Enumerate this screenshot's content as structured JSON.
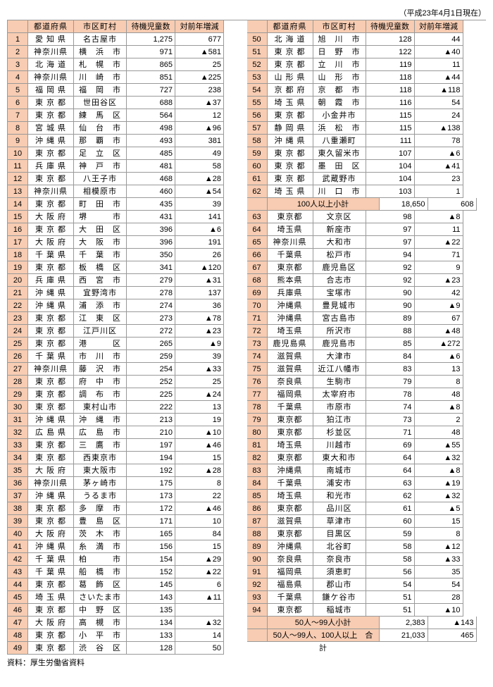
{
  "date_note": "（平成23年4月1日現在）",
  "source": "資料：厚生労働省資料",
  "headers": {
    "idx": "",
    "pref": "都道府県",
    "city": "市区町村",
    "n1": "待機児童数",
    "n2": "対前年増減"
  },
  "subtotals": {
    "s100": {
      "label": "100人以上小計",
      "n1": "18,650",
      "n2": "608"
    },
    "s50": {
      "label": "50人～99人小計",
      "n1": "2,383",
      "n2": "▲143"
    },
    "total": {
      "label": "50人～99人、100人以上　合計",
      "n1": "21,033",
      "n2": "465"
    }
  },
  "left": [
    {
      "i": "1",
      "p": "愛 知 県",
      "c": "名古屋市",
      "n1": "1,275",
      "n2": "677"
    },
    {
      "i": "2",
      "p": "神奈川県",
      "c": "横　浜　市",
      "n1": "971",
      "n2": "▲581"
    },
    {
      "i": "3",
      "p": "北 海 道",
      "c": "札　幌　市",
      "n1": "865",
      "n2": "25"
    },
    {
      "i": "4",
      "p": "神奈川県",
      "c": "川　崎　市",
      "n1": "851",
      "n2": "▲225"
    },
    {
      "i": "5",
      "p": "福 岡 県",
      "c": "福　岡　市",
      "n1": "727",
      "n2": "238"
    },
    {
      "i": "6",
      "p": "東 京 都",
      "c": "世田谷区",
      "n1": "688",
      "n2": "▲37"
    },
    {
      "i": "7",
      "p": "東 京 都",
      "c": "練　馬　区",
      "n1": "564",
      "n2": "12"
    },
    {
      "i": "8",
      "p": "宮 城 県",
      "c": "仙　台　市",
      "n1": "498",
      "n2": "▲96"
    },
    {
      "i": "9",
      "p": "沖 縄 県",
      "c": "那　覇　市",
      "n1": "493",
      "n2": "381"
    },
    {
      "i": "10",
      "p": "東 京 都",
      "c": "足　立　区",
      "n1": "485",
      "n2": "49"
    },
    {
      "i": "11",
      "p": "兵 庫 県",
      "c": "神　戸　市",
      "n1": "481",
      "n2": "58"
    },
    {
      "i": "12",
      "p": "東 京 都",
      "c": "八王子市",
      "n1": "468",
      "n2": "▲28"
    },
    {
      "i": "13",
      "p": "神奈川県",
      "c": "相模原市",
      "n1": "460",
      "n2": "▲54"
    },
    {
      "i": "14",
      "p": "東 京 都",
      "c": "町　田　市",
      "n1": "435",
      "n2": "39"
    },
    {
      "i": "15",
      "p": "大 阪 府",
      "c": "堺　　　市",
      "n1": "431",
      "n2": "141"
    },
    {
      "i": "16",
      "p": "東 京 都",
      "c": "大　田　区",
      "n1": "396",
      "n2": "▲6"
    },
    {
      "i": "17",
      "p": "大 阪 府",
      "c": "大　阪　市",
      "n1": "396",
      "n2": "191"
    },
    {
      "i": "18",
      "p": "千 葉 県",
      "c": "千　葉　市",
      "n1": "350",
      "n2": "26"
    },
    {
      "i": "19",
      "p": "東 京 都",
      "c": "板　橋　区",
      "n1": "341",
      "n2": "▲120"
    },
    {
      "i": "20",
      "p": "兵 庫 県",
      "c": "西　宮　市",
      "n1": "279",
      "n2": "▲31"
    },
    {
      "i": "21",
      "p": "沖 縄 県",
      "c": "宜野湾市",
      "n1": "278",
      "n2": "137"
    },
    {
      "i": "22",
      "p": "沖 縄 県",
      "c": "浦　添　市",
      "n1": "274",
      "n2": "36"
    },
    {
      "i": "23",
      "p": "東 京 都",
      "c": "江　東　区",
      "n1": "273",
      "n2": "▲78"
    },
    {
      "i": "24",
      "p": "東 京 都",
      "c": "江戸川区",
      "n1": "272",
      "n2": "▲23"
    },
    {
      "i": "25",
      "p": "東 京 都",
      "c": "港　　　区",
      "n1": "265",
      "n2": "▲9"
    },
    {
      "i": "26",
      "p": "千 葉 県",
      "c": "市　川　市",
      "n1": "259",
      "n2": "39"
    },
    {
      "i": "27",
      "p": "神奈川県",
      "c": "藤　沢　市",
      "n1": "254",
      "n2": "▲33"
    },
    {
      "i": "28",
      "p": "東 京 都",
      "c": "府　中　市",
      "n1": "252",
      "n2": "25"
    },
    {
      "i": "29",
      "p": "東 京 都",
      "c": "調　布　市",
      "n1": "225",
      "n2": "▲24"
    },
    {
      "i": "30",
      "p": "東 京 都",
      "c": "東村山市",
      "n1": "222",
      "n2": "13"
    },
    {
      "i": "31",
      "p": "沖 縄 県",
      "c": "沖　縄　市",
      "n1": "213",
      "n2": "19"
    },
    {
      "i": "32",
      "p": "広 島 県",
      "c": "広　島　市",
      "n1": "210",
      "n2": "▲10"
    },
    {
      "i": "33",
      "p": "東 京 都",
      "c": "三　鷹　市",
      "n1": "197",
      "n2": "▲46"
    },
    {
      "i": "34",
      "p": "東 京 都",
      "c": "西東京市",
      "n1": "194",
      "n2": "15"
    },
    {
      "i": "35",
      "p": "大 阪 府",
      "c": "東大阪市",
      "n1": "192",
      "n2": "▲28"
    },
    {
      "i": "36",
      "p": "神奈川県",
      "c": "茅ヶ崎市",
      "n1": "175",
      "n2": "8"
    },
    {
      "i": "37",
      "p": "沖 縄 県",
      "c": "うるま市",
      "n1": "173",
      "n2": "22"
    },
    {
      "i": "38",
      "p": "東 京 都",
      "c": "多　摩　市",
      "n1": "172",
      "n2": "▲46"
    },
    {
      "i": "39",
      "p": "東 京 都",
      "c": "豊　島　区",
      "n1": "171",
      "n2": "10"
    },
    {
      "i": "40",
      "p": "大 阪 府",
      "c": "茨　木　市",
      "n1": "165",
      "n2": "84"
    },
    {
      "i": "41",
      "p": "沖 縄 県",
      "c": "糸　満　市",
      "n1": "156",
      "n2": "15"
    },
    {
      "i": "42",
      "p": "千 葉 県",
      "c": "柏　　　市",
      "n1": "154",
      "n2": "▲29"
    },
    {
      "i": "43",
      "p": "千 葉 県",
      "c": "船　橋　市",
      "n1": "152",
      "n2": "▲22"
    },
    {
      "i": "44",
      "p": "東 京 都",
      "c": "葛　飾　区",
      "n1": "145",
      "n2": "6"
    },
    {
      "i": "45",
      "p": "埼 玉 県",
      "c": "さいたま市",
      "n1": "143",
      "n2": "▲11"
    },
    {
      "i": "46",
      "p": "東 京 都",
      "c": "中　野　区",
      "n1": "135",
      "n2": ""
    },
    {
      "i": "47",
      "p": "大 阪 府",
      "c": "高　槻　市",
      "n1": "134",
      "n2": "▲32"
    },
    {
      "i": "48",
      "p": "東 京 都",
      "c": "小　平　市",
      "n1": "133",
      "n2": "14"
    },
    {
      "i": "49",
      "p": "東 京 都",
      "c": "渋　谷　区",
      "n1": "128",
      "n2": "50"
    }
  ],
  "right": [
    {
      "i": "50",
      "p": "北 海 道",
      "c": "旭　川　市",
      "n1": "128",
      "n2": "44"
    },
    {
      "i": "51",
      "p": "東 京 都",
      "c": "日　野　市",
      "n1": "122",
      "n2": "▲40"
    },
    {
      "i": "52",
      "p": "東 京 都",
      "c": "立　川　市",
      "n1": "119",
      "n2": "11"
    },
    {
      "i": "53",
      "p": "山 形 県",
      "c": "山　形　市",
      "n1": "118",
      "n2": "▲44"
    },
    {
      "i": "54",
      "p": "京 都 府",
      "c": "京　都　市",
      "n1": "118",
      "n2": "▲118"
    },
    {
      "i": "55",
      "p": "埼 玉 県",
      "c": "朝　霞　市",
      "n1": "116",
      "n2": "54"
    },
    {
      "i": "56",
      "p": "東 京 都",
      "c": "小金井市",
      "n1": "115",
      "n2": "24"
    },
    {
      "i": "57",
      "p": "静 岡 県",
      "c": "浜　松　市",
      "n1": "115",
      "n2": "▲138"
    },
    {
      "i": "58",
      "p": "沖 縄 県",
      "c": "八重瀬町",
      "n1": "111",
      "n2": "78"
    },
    {
      "i": "59",
      "p": "東 京 都",
      "c": "東久留米市",
      "n1": "107",
      "n2": "▲6"
    },
    {
      "i": "60",
      "p": "東 京 都",
      "c": "墨　田　区",
      "n1": "104",
      "n2": "▲41"
    },
    {
      "i": "61",
      "p": "東 京 都",
      "c": "武蔵野市",
      "n1": "104",
      "n2": "23"
    },
    {
      "i": "62",
      "p": "埼 玉 県",
      "c": "川　口　市",
      "n1": "103",
      "n2": "1"
    },
    {
      "i": "63",
      "p": "東京都",
      "c": "文京区",
      "n1": "98",
      "n2": "▲8"
    },
    {
      "i": "64",
      "p": "埼玉県",
      "c": "新座市",
      "n1": "97",
      "n2": "11"
    },
    {
      "i": "65",
      "p": "神奈川県",
      "c": "大和市",
      "n1": "97",
      "n2": "▲22"
    },
    {
      "i": "66",
      "p": "千葉県",
      "c": "松戸市",
      "n1": "94",
      "n2": "71"
    },
    {
      "i": "67",
      "p": "東京都",
      "c": "鹿児島区",
      "n1": "92",
      "n2": "9"
    },
    {
      "i": "68",
      "p": "熊本県",
      "c": "合志市",
      "n1": "92",
      "n2": "▲23"
    },
    {
      "i": "69",
      "p": "兵庫県",
      "c": "宝塚市",
      "n1": "90",
      "n2": "42"
    },
    {
      "i": "70",
      "p": "沖縄県",
      "c": "豊見城市",
      "n1": "90",
      "n2": "▲9"
    },
    {
      "i": "71",
      "p": "沖縄県",
      "c": "宮古島市",
      "n1": "89",
      "n2": "67"
    },
    {
      "i": "72",
      "p": "埼玉県",
      "c": "所沢市",
      "n1": "88",
      "n2": "▲48"
    },
    {
      "i": "73",
      "p": "鹿児島県",
      "c": "鹿児島市",
      "n1": "85",
      "n2": "▲272"
    },
    {
      "i": "74",
      "p": "滋賀県",
      "c": "大津市",
      "n1": "84",
      "n2": "▲6"
    },
    {
      "i": "75",
      "p": "滋賀県",
      "c": "近江八幡市",
      "n1": "83",
      "n2": "13"
    },
    {
      "i": "76",
      "p": "奈良県",
      "c": "生駒市",
      "n1": "79",
      "n2": "8"
    },
    {
      "i": "77",
      "p": "福岡県",
      "c": "太宰府市",
      "n1": "78",
      "n2": "48"
    },
    {
      "i": "78",
      "p": "千葉県",
      "c": "市原市",
      "n1": "74",
      "n2": "▲8"
    },
    {
      "i": "79",
      "p": "東京都",
      "c": "狛江市",
      "n1": "73",
      "n2": "2"
    },
    {
      "i": "80",
      "p": "東京都",
      "c": "杉並区",
      "n1": "71",
      "n2": "48"
    },
    {
      "i": "81",
      "p": "埼玉県",
      "c": "川越市",
      "n1": "69",
      "n2": "▲55"
    },
    {
      "i": "82",
      "p": "東京都",
      "c": "東大和市",
      "n1": "64",
      "n2": "▲32"
    },
    {
      "i": "83",
      "p": "沖縄県",
      "c": "南城市",
      "n1": "64",
      "n2": "▲8"
    },
    {
      "i": "84",
      "p": "千葉県",
      "c": "浦安市",
      "n1": "63",
      "n2": "▲19"
    },
    {
      "i": "85",
      "p": "埼玉県",
      "c": "和光市",
      "n1": "62",
      "n2": "▲32"
    },
    {
      "i": "86",
      "p": "東京都",
      "c": "品川区",
      "n1": "61",
      "n2": "▲5"
    },
    {
      "i": "87",
      "p": "滋賀県",
      "c": "草津市",
      "n1": "60",
      "n2": "15"
    },
    {
      "i": "88",
      "p": "東京都",
      "c": "目黒区",
      "n1": "59",
      "n2": "8"
    },
    {
      "i": "89",
      "p": "沖縄県",
      "c": "北谷町",
      "n1": "58",
      "n2": "▲12"
    },
    {
      "i": "90",
      "p": "奈良県",
      "c": "奈良市",
      "n1": "58",
      "n2": "▲33"
    },
    {
      "i": "91",
      "p": "福岡県",
      "c": "須恵町",
      "n1": "56",
      "n2": "35"
    },
    {
      "i": "92",
      "p": "福島県",
      "c": "郡山市",
      "n1": "54",
      "n2": "54"
    },
    {
      "i": "93",
      "p": "千葉県",
      "c": "鎌ケ谷市",
      "n1": "51",
      "n2": "28"
    },
    {
      "i": "94",
      "p": "東京都",
      "c": "稲城市",
      "n1": "51",
      "n2": "▲10"
    }
  ]
}
